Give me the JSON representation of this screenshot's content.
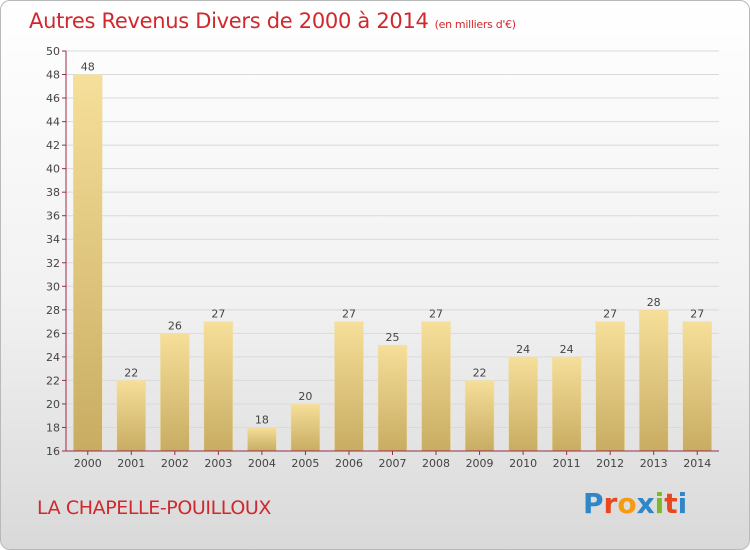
{
  "chart_data": {
    "type": "bar",
    "title": "Autres Revenus Divers de 2000 à 2014",
    "subtitle": "(en milliers d'€)",
    "categories": [
      "2000",
      "2001",
      "2002",
      "2003",
      "2004",
      "2005",
      "2006",
      "2007",
      "2008",
      "2009",
      "2010",
      "2011",
      "2012",
      "2013",
      "2014"
    ],
    "values": [
      48,
      22,
      26,
      27,
      18,
      20,
      27,
      25,
      27,
      22,
      24,
      24,
      27,
      28,
      27
    ],
    "ylim": [
      16,
      50
    ],
    "yticks": [
      "16",
      "18",
      "20",
      "22",
      "24",
      "26",
      "28",
      "30",
      "32",
      "34",
      "36",
      "38",
      "40",
      "42",
      "44",
      "46",
      "48",
      "50"
    ],
    "grid": true,
    "bar_color_top": "#f6df9a",
    "bar_color_bottom": "#c8ac62",
    "axis_color": "#9c2a4e"
  },
  "footer": {
    "location": "LA CHAPELLE-POUILLOUX",
    "logo_text": "Proxiti",
    "logo_colors": [
      "#2f86c9",
      "#e8481e",
      "#f39c12",
      "#2f86c9",
      "#7ab929",
      "#e8481e",
      "#2f86c9"
    ]
  },
  "colors": {
    "title": "#d0282c"
  }
}
